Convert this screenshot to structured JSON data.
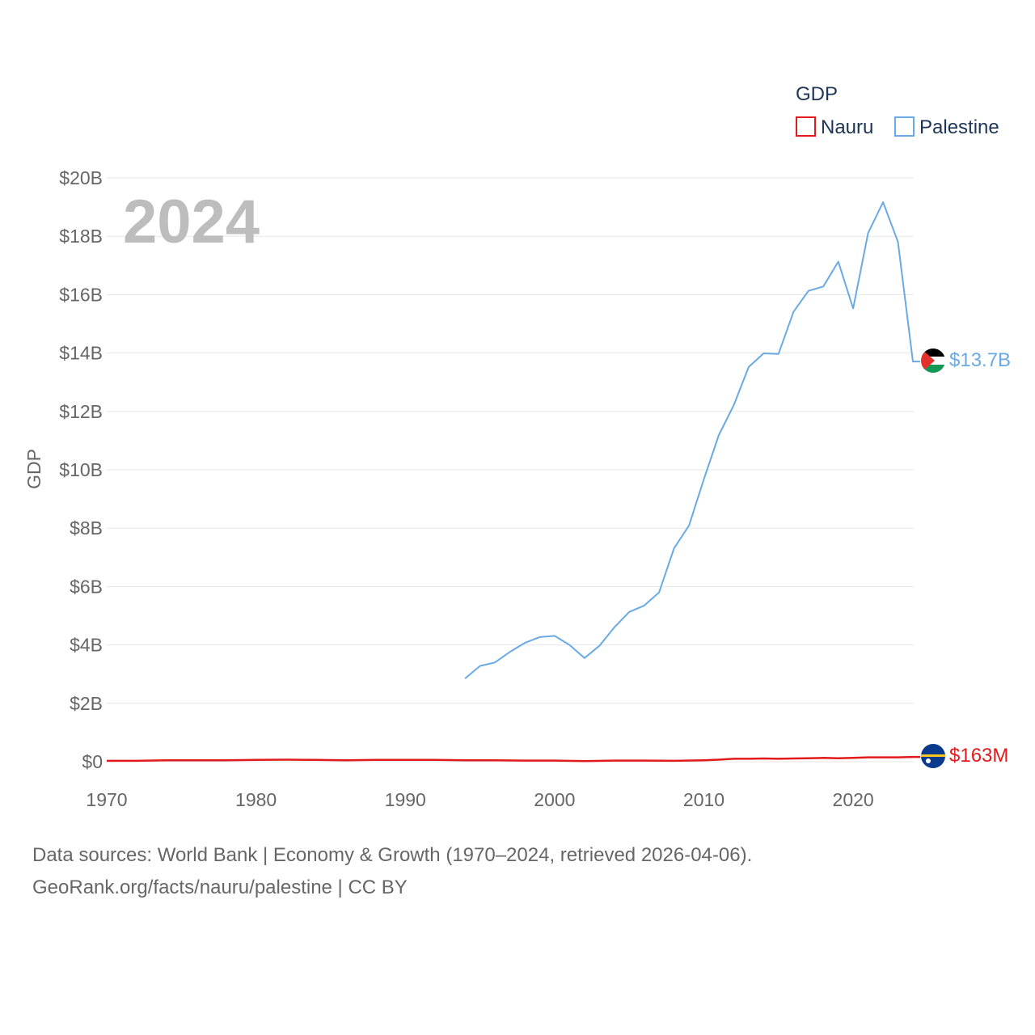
{
  "chart_data": {
    "type": "line",
    "title": "GDP",
    "ylabel": "GDP",
    "xlabel": "",
    "year_label": "2024",
    "xlim": [
      1970,
      2024
    ],
    "ylim": [
      0,
      20
    ],
    "x_ticks": [
      1970,
      1980,
      1990,
      2000,
      2010,
      2020
    ],
    "x_tick_labels": [
      "1970",
      "1980",
      "1990",
      "2000",
      "2010",
      "2020"
    ],
    "y_ticks": [
      0,
      2,
      4,
      6,
      8,
      10,
      12,
      14,
      16,
      18,
      20
    ],
    "y_tick_labels": [
      "$0",
      "$2B",
      "$4B",
      "$6B",
      "$8B",
      "$10B",
      "$12B",
      "$14B",
      "$16B",
      "$18B",
      "$20B"
    ],
    "legend": {
      "title": "GDP",
      "position": "top-right"
    },
    "series": [
      {
        "name": "Nauru",
        "color": "#e31a1c",
        "end_label": "$163M",
        "flag": "nauru-flag",
        "x": [
          1970,
          1972,
          1974,
          1976,
          1978,
          1980,
          1982,
          1984,
          1986,
          1988,
          1990,
          1992,
          1994,
          1996,
          1998,
          2000,
          2002,
          2004,
          2006,
          2008,
          2010,
          2011,
          2012,
          2013,
          2014,
          2015,
          2016,
          2017,
          2018,
          2019,
          2020,
          2021,
          2022,
          2023,
          2024
        ],
        "values": [
          0.03,
          0.03,
          0.05,
          0.05,
          0.05,
          0.06,
          0.07,
          0.06,
          0.05,
          0.06,
          0.06,
          0.06,
          0.05,
          0.05,
          0.04,
          0.04,
          0.02,
          0.04,
          0.04,
          0.03,
          0.05,
          0.07,
          0.1,
          0.1,
          0.11,
          0.1,
          0.11,
          0.12,
          0.13,
          0.12,
          0.13,
          0.15,
          0.15,
          0.15,
          0.163
        ]
      },
      {
        "name": "Palestine",
        "color": "#6aaae4",
        "end_label": "$13.7B",
        "flag": "palestine-flag",
        "x": [
          1994,
          1995,
          1996,
          1997,
          1998,
          1999,
          2000,
          2001,
          2002,
          2003,
          2004,
          2005,
          2006,
          2007,
          2008,
          2009,
          2010,
          2011,
          2012,
          2013,
          2014,
          2015,
          2016,
          2017,
          2018,
          2019,
          2020,
          2021,
          2022,
          2023,
          2024
        ],
        "values": [
          2.85,
          3.28,
          3.4,
          3.76,
          4.07,
          4.27,
          4.31,
          4.0,
          3.55,
          3.97,
          4.6,
          5.13,
          5.35,
          5.8,
          7.31,
          8.09,
          9.68,
          11.19,
          12.21,
          13.52,
          13.99,
          13.97,
          15.41,
          16.13,
          16.28,
          17.13,
          15.53,
          18.11,
          19.17,
          17.81,
          13.71
        ]
      }
    ]
  },
  "footer": {
    "line1": "Data sources: World Bank | Economy & Growth (1970–2024, retrieved 2026-04-06).",
    "line2": "GeoRank.org/facts/nauru/palestine | CC BY"
  }
}
